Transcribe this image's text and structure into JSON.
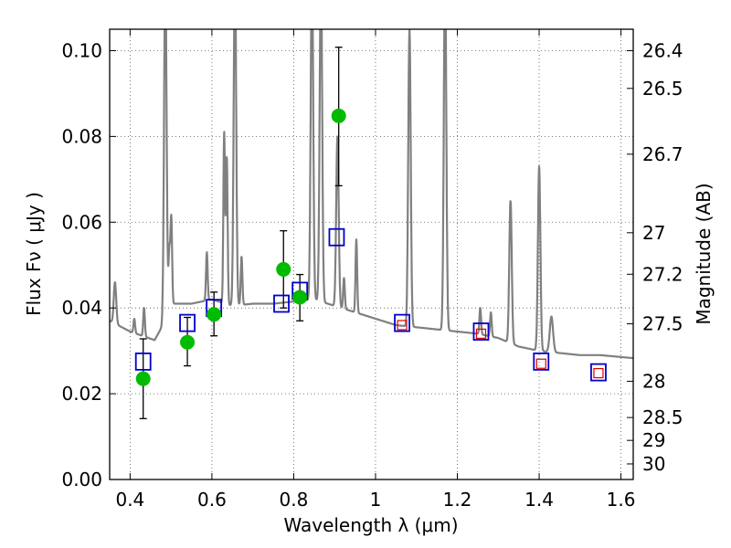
{
  "chart_data": {
    "type": "scatter",
    "xlabel": "Wavelength  λ (μm)",
    "ylabel": "Flux  Fν ( μJy )",
    "ylabel_right": "Magnitude (AB)",
    "xlim": [
      0.35,
      1.63
    ],
    "ylim": [
      0.0,
      0.105
    ],
    "grid": true,
    "x_ticks": [
      {
        "value": 0.4,
        "label": "0.4"
      },
      {
        "value": 0.6,
        "label": "0.6"
      },
      {
        "value": 0.8,
        "label": "0.8"
      },
      {
        "value": 1.0,
        "label": "1"
      },
      {
        "value": 1.2,
        "label": "1.2"
      },
      {
        "value": 1.4,
        "label": "1.4"
      },
      {
        "value": 1.6,
        "label": "1.6"
      }
    ],
    "y_ticks": [
      {
        "value": 0.0,
        "label": "0.00"
      },
      {
        "value": 0.02,
        "label": "0.02"
      },
      {
        "value": 0.04,
        "label": "0.04"
      },
      {
        "value": 0.06,
        "label": "0.06"
      },
      {
        "value": 0.08,
        "label": "0.08"
      },
      {
        "value": 0.1,
        "label": "0.10"
      }
    ],
    "right_ticks": [
      {
        "mag": 26.4,
        "label": "26.4"
      },
      {
        "mag": 26.5,
        "label": "26.5"
      },
      {
        "mag": 26.7,
        "label": "26.7"
      },
      {
        "mag": 27.0,
        "label": "27"
      },
      {
        "mag": 27.2,
        "label": "27.2"
      },
      {
        "mag": 27.5,
        "label": "27.5"
      },
      {
        "mag": 28.0,
        "label": "28"
      },
      {
        "mag": 28.5,
        "label": "28.5"
      },
      {
        "mag": 29.0,
        "label": "29"
      },
      {
        "mag": 30.0,
        "label": "30"
      }
    ],
    "colors": {
      "spectrum": "#808080",
      "observed": "#00bb00",
      "model_broad": "#0000cc",
      "model_inner": "#dd0000",
      "errorbar": "#000000",
      "grid": "#555555"
    },
    "spectrum": {
      "continuum": [
        [
          0.35,
          0.037
        ],
        [
          0.4,
          0.0345
        ],
        [
          0.46,
          0.0325
        ],
        [
          0.48,
          0.036
        ],
        [
          0.5,
          0.041
        ],
        [
          0.55,
          0.041
        ],
        [
          0.6,
          0.042
        ],
        [
          0.65,
          0.0405
        ],
        [
          0.7,
          0.041
        ],
        [
          0.75,
          0.041
        ],
        [
          0.8,
          0.0415
        ],
        [
          0.85,
          0.042
        ],
        [
          0.9,
          0.0405
        ],
        [
          0.95,
          0.039
        ],
        [
          1.0,
          0.0375
        ],
        [
          1.05,
          0.036
        ],
        [
          1.1,
          0.0355
        ],
        [
          1.15,
          0.035
        ],
        [
          1.2,
          0.0345
        ],
        [
          1.25,
          0.034
        ],
        [
          1.3,
          0.033
        ],
        [
          1.35,
          0.031
        ],
        [
          1.4,
          0.03
        ],
        [
          1.45,
          0.0295
        ],
        [
          1.5,
          0.029
        ],
        [
          1.55,
          0.029
        ],
        [
          1.63,
          0.0283
        ]
      ],
      "lines": [
        {
          "x": 0.363,
          "peak": 0.046,
          "w": 0.003
        },
        {
          "x": 0.4102,
          "peak": 0.0375,
          "w": 0.002
        },
        {
          "x": 0.4341,
          "peak": 0.04,
          "w": 0.002
        },
        {
          "x": 0.4861,
          "peak": 0.12,
          "w": 0.003
        },
        {
          "x": 0.4959,
          "peak": 0.053,
          "w": 0.002
        },
        {
          "x": 0.5007,
          "peak": 0.061,
          "w": 0.002
        },
        {
          "x": 0.5876,
          "peak": 0.053,
          "w": 0.002
        },
        {
          "x": 0.63,
          "peak": 0.081,
          "w": 0.002
        },
        {
          "x": 0.6364,
          "peak": 0.075,
          "w": 0.002
        },
        {
          "x": 0.6563,
          "peak": 0.12,
          "w": 0.003
        },
        {
          "x": 0.6725,
          "peak": 0.052,
          "w": 0.002
        },
        {
          "x": 0.8446,
          "peak": 0.12,
          "w": 0.003
        },
        {
          "x": 0.8665,
          "peak": 0.12,
          "w": 0.003
        },
        {
          "x": 0.9069,
          "peak": 0.08,
          "w": 0.003
        },
        {
          "x": 0.9229,
          "peak": 0.047,
          "w": 0.002
        },
        {
          "x": 0.9531,
          "peak": 0.056,
          "w": 0.002
        },
        {
          "x": 1.083,
          "peak": 0.105,
          "w": 0.003
        },
        {
          "x": 1.17,
          "peak": 0.12,
          "w": 0.003
        },
        {
          "x": 1.256,
          "peak": 0.04,
          "w": 0.002
        },
        {
          "x": 1.282,
          "peak": 0.039,
          "w": 0.002
        },
        {
          "x": 1.33,
          "peak": 0.065,
          "w": 0.003
        },
        {
          "x": 1.4,
          "peak": 0.073,
          "w": 0.003
        },
        {
          "x": 1.43,
          "peak": 0.038,
          "w": 0.004
        }
      ]
    },
    "observed": [
      {
        "x": 0.432,
        "y": 0.0235,
        "err_low": 0.0142,
        "err_high": 0.0328
      },
      {
        "x": 0.54,
        "y": 0.032,
        "err_low": 0.0265,
        "err_high": 0.0378
      },
      {
        "x": 0.605,
        "y": 0.0385,
        "err_low": 0.0335,
        "err_high": 0.0437
      },
      {
        "x": 0.775,
        "y": 0.049,
        "err_low": 0.04,
        "err_high": 0.058
      },
      {
        "x": 0.815,
        "y": 0.0425,
        "err_low": 0.037,
        "err_high": 0.0478
      },
      {
        "x": 0.91,
        "y": 0.0848,
        "err_low": 0.0685,
        "err_high": 0.1008
      }
    ],
    "model_broad": [
      {
        "x": 0.432,
        "y": 0.0275
      },
      {
        "x": 0.54,
        "y": 0.0365
      },
      {
        "x": 0.605,
        "y": 0.04
      },
      {
        "x": 0.77,
        "y": 0.041
      },
      {
        "x": 0.815,
        "y": 0.044
      },
      {
        "x": 0.905,
        "y": 0.0565
      },
      {
        "x": 1.065,
        "y": 0.0365
      },
      {
        "x": 1.258,
        "y": 0.0345
      },
      {
        "x": 1.405,
        "y": 0.0275
      },
      {
        "x": 1.545,
        "y": 0.025
      }
    ],
    "model_inner": [
      {
        "x": 1.065,
        "y": 0.036
      },
      {
        "x": 1.258,
        "y": 0.034
      },
      {
        "x": 1.405,
        "y": 0.027
      },
      {
        "x": 1.545,
        "y": 0.0248
      }
    ]
  }
}
